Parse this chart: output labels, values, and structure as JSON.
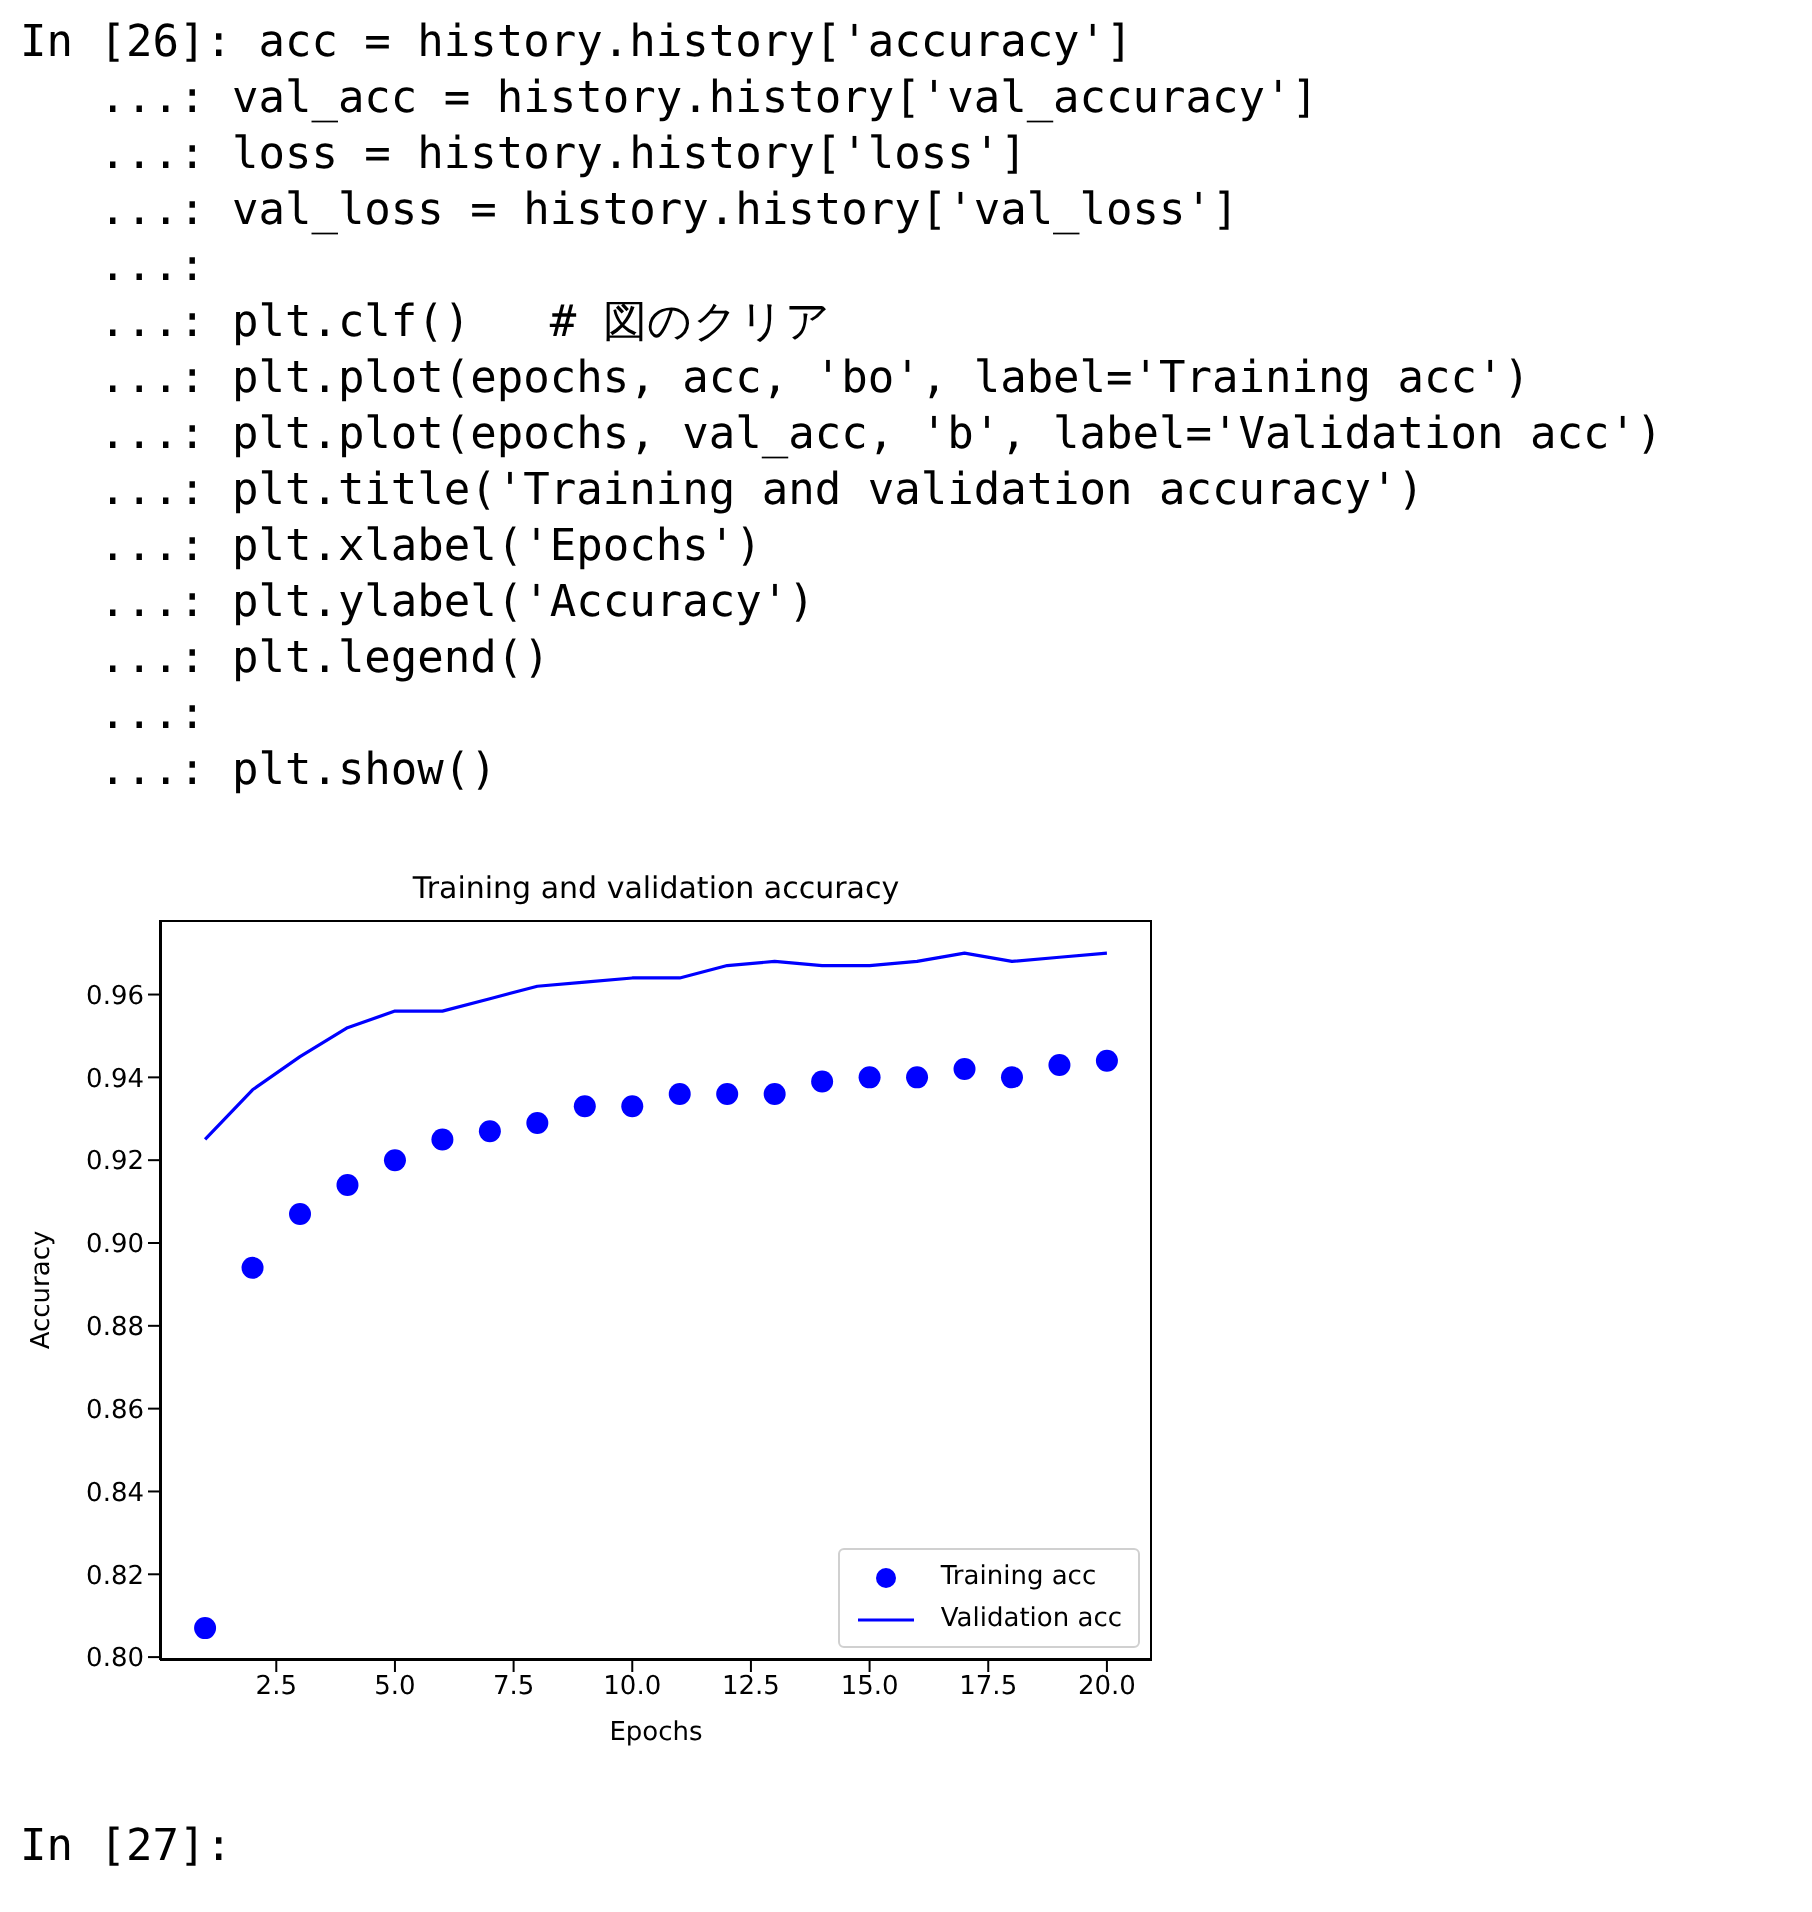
{
  "chart_data": {
    "type": "line",
    "title": "Training and validation accuracy",
    "xlabel": "Epochs",
    "ylabel": "Accuracy",
    "x": [
      1,
      2,
      3,
      4,
      5,
      6,
      7,
      8,
      9,
      10,
      11,
      12,
      13,
      14,
      15,
      16,
      17,
      18,
      19,
      20
    ],
    "series": [
      {
        "name": "Training acc",
        "type": "scatter",
        "marker": "circle",
        "color": "#0000ff",
        "values": [
          0.807,
          0.894,
          0.907,
          0.914,
          0.92,
          0.925,
          0.927,
          0.929,
          0.933,
          0.933,
          0.936,
          0.936,
          0.936,
          0.939,
          0.94,
          0.94,
          0.942,
          0.94,
          0.943,
          0.944
        ]
      },
      {
        "name": "Validation acc",
        "type": "line",
        "line_style": "solid",
        "color": "#0000ff",
        "values": [
          0.925,
          0.937,
          0.945,
          0.952,
          0.956,
          0.956,
          0.959,
          0.962,
          0.963,
          0.964,
          0.964,
          0.967,
          0.968,
          0.967,
          0.967,
          0.968,
          0.97,
          0.968,
          0.969,
          0.97
        ]
      }
    ],
    "xlim": [
      0.05,
      20.95
    ],
    "xticks": [
      {
        "value": 2.5,
        "label": "2.5"
      },
      {
        "value": 5,
        "label": "5.0"
      },
      {
        "value": 7.5,
        "label": "7.5"
      },
      {
        "value": 10,
        "label": "10.0"
      },
      {
        "value": 12.5,
        "label": "12.5"
      },
      {
        "value": 15,
        "label": "15.0"
      },
      {
        "value": 17.5,
        "label": "17.5"
      },
      {
        "value": 20,
        "label": "20.0"
      }
    ],
    "ylim": [
      0.7993,
      0.978
    ],
    "yticks": [
      {
        "value": 0.8,
        "label": "0.80"
      },
      {
        "value": 0.82,
        "label": "0.82"
      },
      {
        "value": 0.84,
        "label": "0.84"
      },
      {
        "value": 0.86,
        "label": "0.86"
      },
      {
        "value": 0.88,
        "label": "0.88"
      },
      {
        "value": 0.9,
        "label": "0.90"
      },
      {
        "value": 0.92,
        "label": "0.92"
      },
      {
        "value": 0.94,
        "label": "0.94"
      },
      {
        "value": 0.96,
        "label": "0.96"
      }
    ],
    "grid": false,
    "legend": "bottom right",
    "annotations": [
      "In [26]: acc = history.history['accuracy']",
      "   ...: val_acc = history.history['val_accuracy']",
      "   ...: loss = history.history['loss']",
      "   ...: val_loss = history.history['val_loss']",
      "   ...:",
      "   ...: plt.clf()   # 図のクリア",
      "   ...: plt.plot(epochs, acc, 'bo', label='Training acc')",
      "   ...: plt.plot(epochs, val_acc, 'b', label='Validation acc')",
      "   ...: plt.title('Training and validation accuracy')",
      "   ...: plt.xlabel('Epochs')",
      "   ...: plt.ylabel('Accuracy')",
      "   ...: plt.legend()",
      "   ...:",
      "   ...: plt.show()",
      "In [27]:"
    ]
  }
}
